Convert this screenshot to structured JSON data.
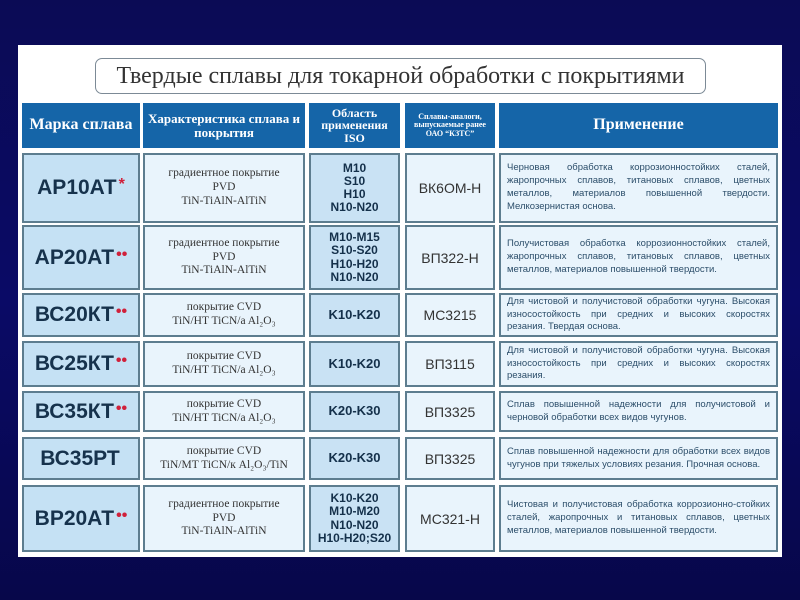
{
  "title": "Твердые сплавы для токарной обработки с покрытиями",
  "headers": [
    "Марка сплава",
    "Характеристика сплава и покрытия",
    "Область применения ISO",
    "Сплавы-аналоги, выпускаемые ранее ОАО “КЗТС”",
    "Применение"
  ],
  "rows": [
    {
      "grade": "АР10АТ",
      "marker": "*",
      "coating": [
        "градиентное покрытие",
        "PVD",
        "TiN-TiAlN-AlTiN"
      ],
      "iso": [
        "M10",
        "S10",
        "H10",
        "N10-N20"
      ],
      "analog": "ВК6ОМ-Н",
      "application": "Черновая обработка коррозионностойких сталей, жаропрочных сплавов, титановых сплавов, цветных металлов, материалов повышенной твердости. Мелкозернистая основа."
    },
    {
      "grade": "АР20АТ",
      "marker": "••",
      "coating": [
        "градиентное покрытие",
        "PVD",
        "TiN-TiAlN-AlTiN"
      ],
      "iso": [
        "M10-M15",
        "S10-S20",
        "H10-H20",
        "N10-N20"
      ],
      "analog": "ВП322-Н",
      "application": "Получистовая обработка коррозионностойких сталей, жаропрочных сплавов, титановых сплавов, цветных металлов, материалов повышенной твердости."
    },
    {
      "grade": "ВС20КТ",
      "marker": "••",
      "coating": [
        "покрытие CVD",
        "TiN/HT TiCN/a Al₂O₃"
      ],
      "iso": [
        "K10-K20"
      ],
      "analog": "МС3215",
      "application": "Для чистовой и получистовой обработки чугуна. Высокая износостойкость при средних и высоких скоростях резания. Твердая основа."
    },
    {
      "grade": "ВС25КТ",
      "marker": "••",
      "coating": [
        "покрытие CVD",
        "TiN/HT TiCN/a Al₂O₃"
      ],
      "iso": [
        "K10-K20"
      ],
      "analog": "ВП3115",
      "application": "Для чистовой и получистовой обработки чугуна. Высокая износостойкость при средних и высоких скоростях резания."
    },
    {
      "grade": "ВС35КТ",
      "marker": "••",
      "coating": [
        "покрытие CVD",
        "TiN/HT TiCN/a Al₂O₃"
      ],
      "iso": [
        "K20-K30"
      ],
      "analog": "ВП3325",
      "application": "Сплав повышенной надежности для получистовой и черновой обработки всех видов чугунов."
    },
    {
      "grade": "ВС35РТ",
      "marker": "",
      "coating": [
        "покрытие CVD",
        "TiN/MT TiCN/к Al₂O₃/TiN"
      ],
      "iso": [
        "K20-K30"
      ],
      "analog": "ВП3325",
      "application": "Сплав повышенной надежности для обработки всех видов чугунов при тяжелых условиях резания. Прочная основа."
    },
    {
      "grade": "ВР20АТ",
      "marker": "••",
      "coating": [
        "градиентное покрытие",
        "PVD",
        "TiN-TiAlN-AlTiN"
      ],
      "iso": [
        "K10-K20",
        "M10-M20",
        "N10-N20",
        "H10-H20;S20"
      ],
      "analog": "МС321-Н",
      "application": "Чистовая и получистовая обработка коррозионно-стойких сталей, жаропрочных и титановых сплавов, цветных металлов, материалов повышенной твердости."
    }
  ],
  "colors": {
    "background": "#0a0a66",
    "header": "#1565a8",
    "marker": "#d0213b"
  }
}
